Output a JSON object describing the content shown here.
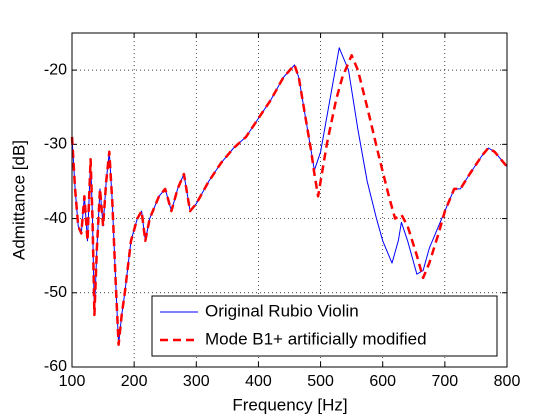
{
  "chart_data": {
    "type": "line",
    "xlabel": "Frequency [Hz]",
    "ylabel": "Admittance [dB]",
    "xlim": [
      100,
      800
    ],
    "xticks": [
      100,
      200,
      300,
      400,
      500,
      600,
      700,
      800
    ],
    "ylim": [
      -60,
      -15
    ],
    "yticks": [
      -60,
      -50,
      -40,
      -30,
      -20
    ],
    "grid": true,
    "legend": "lower right",
    "series": [
      {
        "name": "Original Rubio Violin",
        "color": "#0000ff",
        "dashed": false,
        "x": [
          100,
          105,
          110,
          115,
          120,
          125,
          130,
          133,
          136,
          140,
          145,
          150,
          155,
          160,
          165,
          170,
          175,
          180,
          185,
          195,
          205,
          212,
          218,
          225,
          240,
          250,
          260,
          270,
          280,
          290,
          300,
          320,
          340,
          360,
          380,
          400,
          420,
          440,
          458,
          465,
          475,
          485,
          490,
          500,
          515,
          530,
          545,
          560,
          575,
          590,
          600,
          615,
          625,
          630,
          640,
          655,
          665,
          675,
          685,
          700,
          715,
          725,
          740,
          760,
          770,
          780,
          795,
          800
        ],
        "values": [
          -29,
          -36,
          -41,
          -42,
          -37,
          -43,
          -32,
          -40,
          -53,
          -44,
          -36,
          -41,
          -35,
          -31,
          -38,
          -48,
          -57,
          -53,
          -50,
          -43,
          -40,
          -39,
          -43,
          -40,
          -37,
          -36,
          -39,
          -36,
          -34,
          -39,
          -38,
          -35,
          -32.5,
          -30.5,
          -29,
          -26.5,
          -24,
          -21,
          -19.3,
          -21,
          -26,
          -31,
          -33.5,
          -31,
          -24,
          -17,
          -20,
          -28,
          -35,
          -40,
          -43,
          -46,
          -43,
          -40.5,
          -43,
          -47.5,
          -47,
          -44,
          -42,
          -39,
          -36,
          -36,
          -34,
          -31.5,
          -30.5,
          -31,
          -32.5,
          -33
        ]
      },
      {
        "name": "Mode B1+ artificially modified",
        "color": "#ff0000",
        "dashed": true,
        "x": [
          100,
          105,
          110,
          115,
          120,
          125,
          130,
          133,
          136,
          140,
          145,
          150,
          155,
          160,
          165,
          170,
          175,
          180,
          185,
          195,
          205,
          212,
          218,
          225,
          240,
          250,
          260,
          270,
          280,
          290,
          300,
          320,
          340,
          360,
          380,
          400,
          420,
          440,
          458,
          465,
          475,
          485,
          490,
          496,
          510,
          525,
          535,
          550,
          560,
          575,
          595,
          610,
          620,
          630,
          640,
          655,
          665,
          675,
          690,
          700,
          715,
          725,
          740,
          760,
          770,
          780,
          795,
          800
        ],
        "values": [
          -29,
          -36,
          -41,
          -42,
          -37,
          -43,
          -32,
          -40,
          -53,
          -44,
          -36,
          -41,
          -35,
          -31,
          -38,
          -48,
          -57,
          -53,
          -50,
          -43,
          -40,
          -39,
          -43,
          -40,
          -37,
          -36,
          -39,
          -36,
          -34,
          -39,
          -38,
          -35,
          -32.5,
          -30.5,
          -29,
          -26.5,
          -24,
          -21,
          -19.3,
          -21,
          -26,
          -31,
          -34,
          -37,
          -30,
          -24,
          -21,
          -18,
          -20,
          -25,
          -32,
          -37,
          -40,
          -39.5,
          -41,
          -45,
          -48,
          -46,
          -42,
          -39,
          -36,
          -36,
          -34,
          -31.5,
          -30.5,
          -31,
          -32.5,
          -33
        ]
      }
    ]
  }
}
